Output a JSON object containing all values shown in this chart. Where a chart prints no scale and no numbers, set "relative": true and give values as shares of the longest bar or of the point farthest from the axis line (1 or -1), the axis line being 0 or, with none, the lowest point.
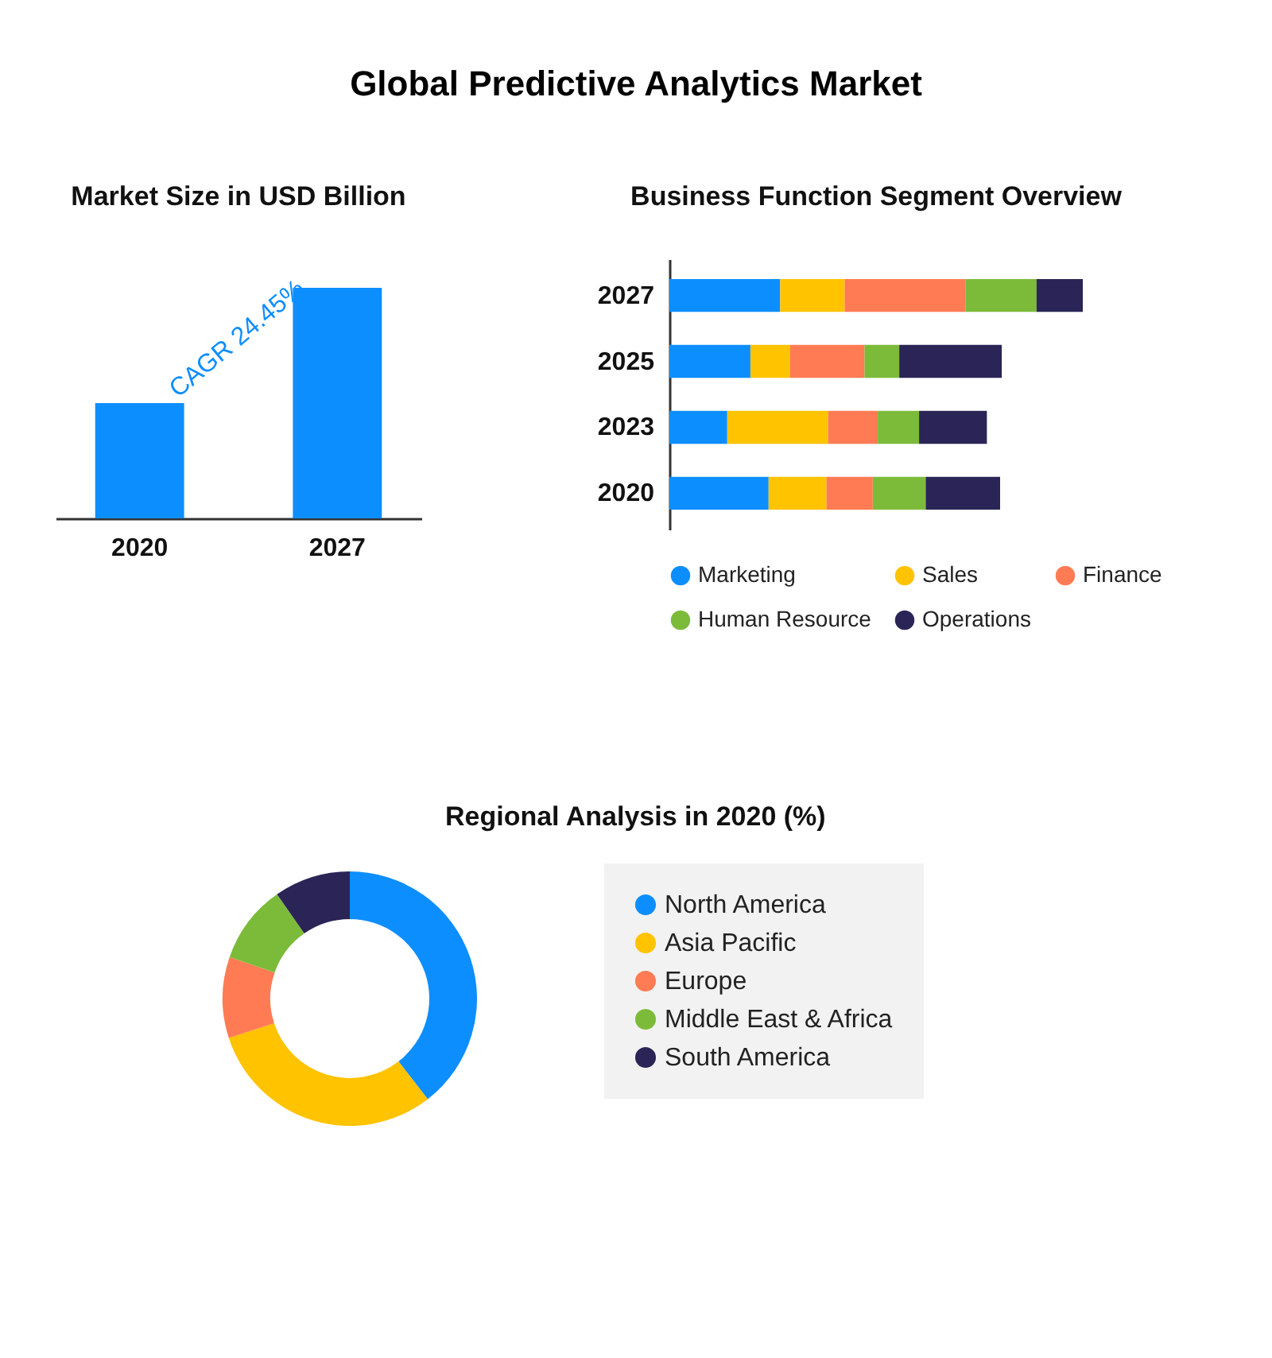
{
  "chart_data": [
    {
      "type": "other",
      "title": "Global Predictive Analytics Market"
    },
    {
      "type": "bar",
      "title": "Market Size in USD Billion",
      "categories": [
        "2020",
        "2027"
      ],
      "values": [
        0.5,
        1
      ],
      "relative": true,
      "color": "#0d8eff",
      "annotations": [
        "CAGR 24.45%"
      ]
    },
    {
      "type": "bar",
      "title": "Business Function Segment Overview",
      "orientation": "horizontal",
      "stacked": true,
      "relative": true,
      "legend": "bottom",
      "categories": [
        "2027",
        "2025",
        "2023",
        "2020"
      ],
      "series": [
        {
          "name": "Marketing",
          "color": "#0d8eff",
          "values": [
            0.268,
            0.196,
            0.14,
            0.24
          ]
        },
        {
          "name": "Sales",
          "color": "#ffc300",
          "values": [
            0.156,
            0.096,
            0.244,
            0.14
          ]
        },
        {
          "name": "Finance",
          "color": "#ff7b54",
          "values": [
            0.292,
            0.18,
            0.12,
            0.112
          ]
        },
        {
          "name": "Human Resource",
          "color": "#7cbb3a",
          "values": [
            0.172,
            0.084,
            0.1,
            0.128
          ]
        },
        {
          "name": "Operations",
          "color": "#2a2556",
          "values": [
            0.112,
            0.248,
            0.164,
            0.18
          ]
        }
      ]
    },
    {
      "type": "donut",
      "title": "Regional Analysis in 2020 (%)",
      "legend": "right",
      "categories": [
        "North America",
        "Asia Pacific",
        "Europe",
        "Middle East & Africa",
        "South America"
      ],
      "values": [
        39.5,
        30.5,
        10.3,
        10,
        9.7
      ],
      "colors": [
        "#0d8eff",
        "#ffc300",
        "#ff7b54",
        "#7cbb3a",
        "#2a2556"
      ]
    }
  ]
}
